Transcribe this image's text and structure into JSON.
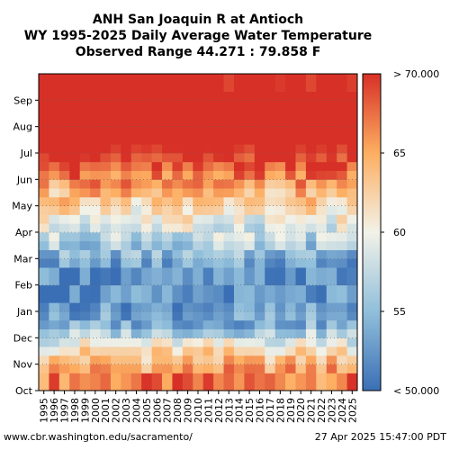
{
  "chart_data": {
    "type": "heatmap",
    "title_lines": [
      "ANH San Joaquin R at Antioch",
      "WY 1995-2025 Daily Average Water Temperature",
      "Observed Range 44.271 : 79.858 F"
    ],
    "x_categories": [
      "1995",
      "1996",
      "1997",
      "1998",
      "1999",
      "2000",
      "2001",
      "2002",
      "2003",
      "2004",
      "2005",
      "2006",
      "2007",
      "2008",
      "2009",
      "2010",
      "2011",
      "2012",
      "2013",
      "2014",
      "2015",
      "2016",
      "2017",
      "2018",
      "2019",
      "2020",
      "2021",
      "2022",
      "2023",
      "2024",
      "2025"
    ],
    "y_months": [
      "Oct",
      "Nov",
      "Dec",
      "Jan",
      "Feb",
      "Mar",
      "Apr",
      "May",
      "Jun",
      "Jul",
      "Aug",
      "Sep"
    ],
    "monthly_typical_values": {
      "Oct": 67,
      "Nov": 62,
      "Dec": 54,
      "Jan": 52,
      "Feb": 52,
      "Mar": 56,
      "Apr": 60,
      "May": 64,
      "Jun": 69,
      "Jul": 73,
      "Aug": 74,
      "Sep": 72
    },
    "colorbar": {
      "min": 50,
      "max": 70,
      "ticks": [
        55,
        60,
        65
      ],
      "min_label": "< 50.000",
      "max_label": "> 70.000",
      "tick_labels": [
        "55",
        "60",
        "65"
      ]
    }
  },
  "footer": {
    "source": "www.cbr.washington.edu/sacramento/",
    "timestamp": "27 Apr 2025 15:47:00 PDT"
  }
}
